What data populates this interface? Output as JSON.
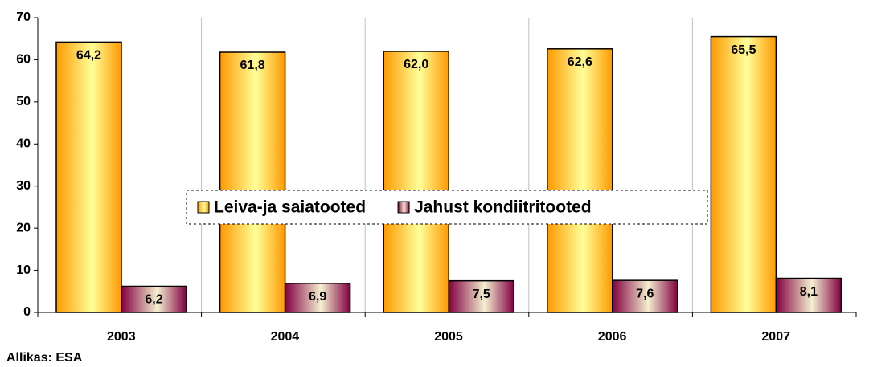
{
  "chart_data": {
    "type": "bar",
    "categories": [
      "2003",
      "2004",
      "2005",
      "2006",
      "2007"
    ],
    "series": [
      {
        "name": "Leiva-ja saiatooted",
        "color": "#ff9900",
        "values": [
          64.2,
          61.8,
          62.0,
          62.6,
          65.5
        ],
        "value_labels": [
          "64,2",
          "61,8",
          "62,0",
          "62,6",
          "65,5"
        ]
      },
      {
        "name": "Jahust kondiitritooted",
        "color": "#800040",
        "values": [
          6.2,
          6.9,
          7.5,
          7.6,
          8.1
        ],
        "value_labels": [
          "6,2",
          "6,9",
          "7,5",
          "7,6",
          "8,1"
        ]
      }
    ],
    "ylim": [
      0,
      70
    ],
    "yticks": [
      0,
      10,
      20,
      30,
      40,
      50,
      60,
      70
    ],
    "legend": "center",
    "source": "Allikas: ESA"
  }
}
